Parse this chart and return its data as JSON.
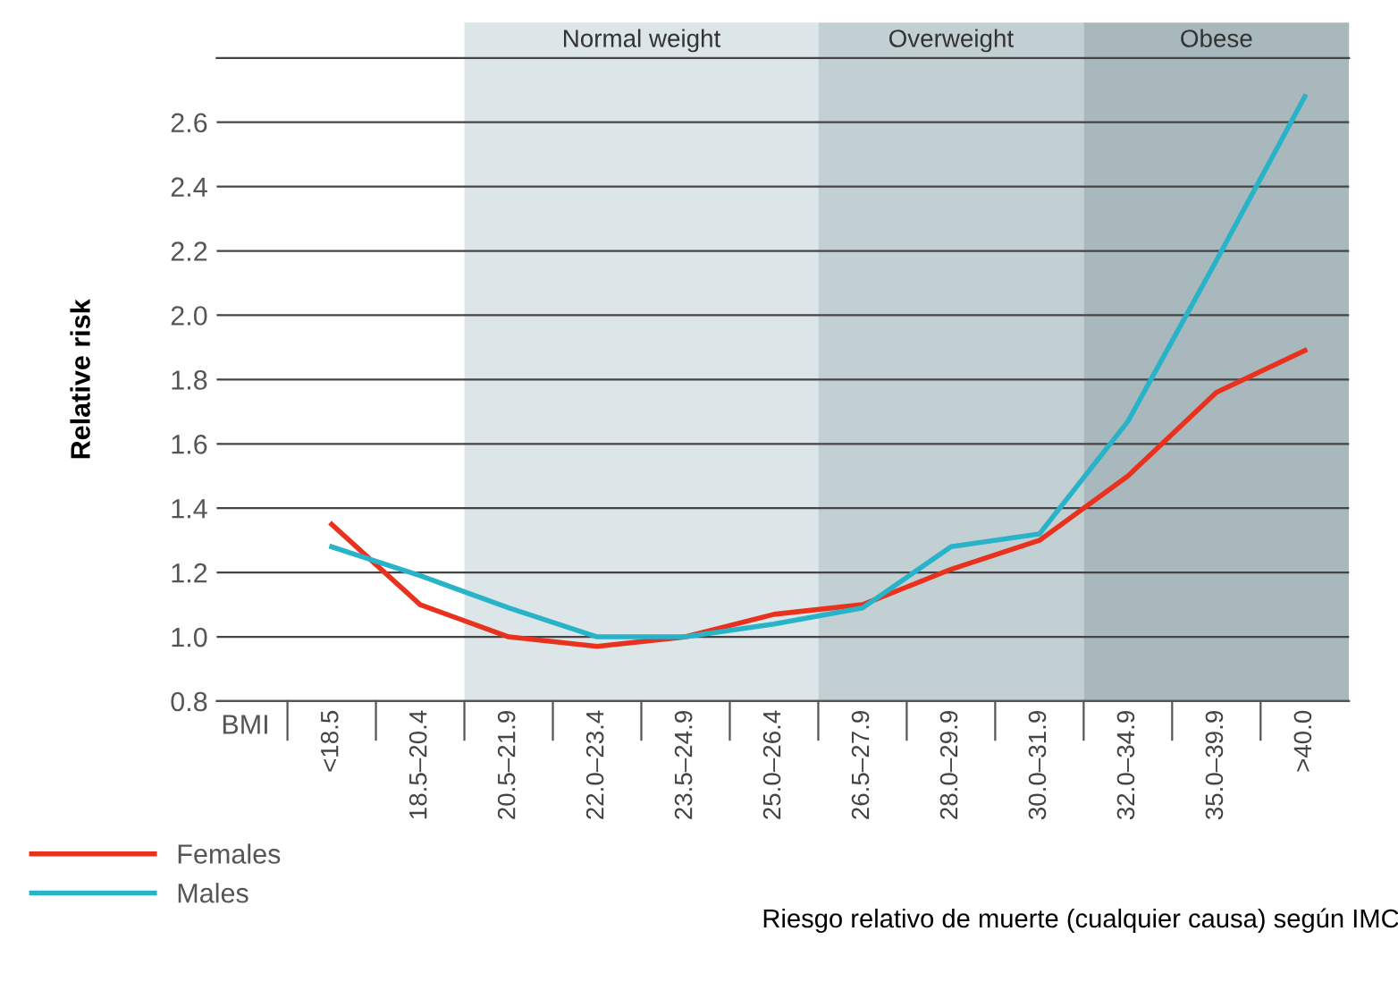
{
  "chart_data": {
    "type": "line",
    "ylabel": "Relative risk",
    "xlabel": "BMI",
    "categories": [
      "<18.5",
      "18.5–20.4",
      "20.5–21.9",
      "22.0–23.4",
      "23.5–24.9",
      "25.0–26.4",
      "26.5–27.9",
      "28.0–29.9",
      "30.0–31.9",
      "32.0–34.9",
      "35.0–39.9",
      ">40.0"
    ],
    "series": [
      {
        "name": "Females",
        "color": "#e8321e",
        "values": [
          1.35,
          1.1,
          1.0,
          0.97,
          1.0,
          1.07,
          1.1,
          1.21,
          1.3,
          1.5,
          1.76,
          1.89
        ]
      },
      {
        "name": "Males",
        "color": "#29b3c9",
        "values": [
          1.28,
          1.19,
          1.09,
          1.0,
          1.0,
          1.04,
          1.09,
          1.28,
          1.32,
          1.67,
          2.17,
          2.68
        ]
      }
    ],
    "ylim": [
      0.8,
      2.8
    ],
    "yticks": [
      0.8,
      {
        "value": 1,
        "label": "1.0"
      },
      1.2,
      1.4,
      1.6,
      1.8,
      {
        "value": 2,
        "label": "2.0"
      },
      2.2,
      2.4,
      2.6,
      {
        "value": 2.8,
        "label": null
      }
    ],
    "grid": "y",
    "legend": "bottom left",
    "marker": "none",
    "line_style": "solid",
    "bands": [
      {
        "axis": "x",
        "from": "20.5–21.9",
        "to": "25.0–26.4",
        "label": "Normal weight",
        "color": "#dce5e7"
      },
      {
        "axis": "x",
        "from": "26.5–27.9",
        "to": "30.0–31.9",
        "label": "Overweight",
        "color": "#c3d0d3"
      },
      {
        "axis": "x",
        "from": "32.0–34.9",
        "to": ">40.0",
        "label": "Obese",
        "color": "#a8b8bc"
      }
    ],
    "annotations": [
      "Riesgo relativo de muerte (cualquier causa) según IMC"
    ]
  }
}
